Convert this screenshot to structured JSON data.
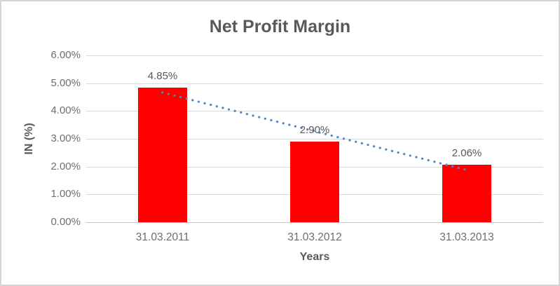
{
  "chart_data": {
    "type": "bar",
    "title": "Net Profit Margin",
    "xlabel": "Years",
    "ylabel": "IN (%)",
    "categories": [
      "31.03.2011",
      "31.03.2012",
      "31.03.2013"
    ],
    "values": [
      4.85,
      2.9,
      2.06
    ],
    "data_labels": [
      "4.85%",
      "2.90%",
      "2.06%"
    ],
    "ylim": [
      0,
      6
    ],
    "ytick_step": 1,
    "ytick_labels": [
      "0.00%",
      "1.00%",
      "2.00%",
      "3.00%",
      "4.00%",
      "5.00%",
      "6.00%"
    ],
    "grid": true,
    "legend": "none",
    "trendline": {
      "type": "linear",
      "style": "dotted",
      "series": "Net Profit Margin"
    }
  },
  "colors": {
    "bar": "#FF0000",
    "trendline": "#4A86C8",
    "gridline": "#D9D9D9",
    "axis_line": "#C6C6C6",
    "title_text": "#595959",
    "tick_text": "#6E6E6E",
    "frame_border": "#D4D4D4"
  }
}
